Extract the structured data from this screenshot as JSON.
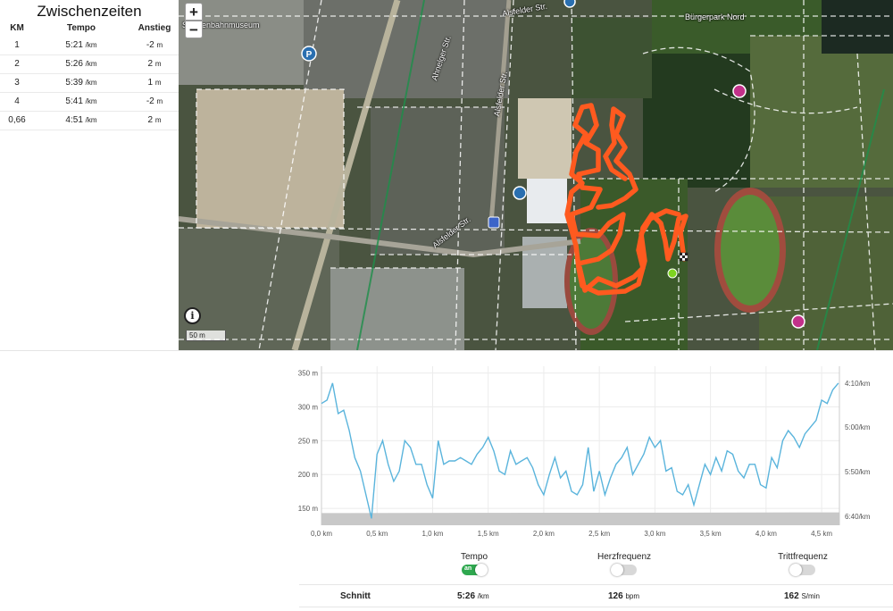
{
  "splits": {
    "title": "Zwischenzeiten",
    "headers": {
      "km": "KM",
      "pace": "Tempo",
      "climb": "Anstieg"
    },
    "rows": [
      {
        "km": "1",
        "pace": "5:21",
        "pace_unit": "/km",
        "climb": "-2",
        "climb_unit": "m"
      },
      {
        "km": "2",
        "pace": "5:26",
        "pace_unit": "/km",
        "climb": "2",
        "climb_unit": "m"
      },
      {
        "km": "3",
        "pace": "5:39",
        "pace_unit": "/km",
        "climb": "1",
        "climb_unit": "m"
      },
      {
        "km": "4",
        "pace": "5:41",
        "pace_unit": "/km",
        "climb": "-2",
        "climb_unit": "m"
      },
      {
        "km": "0,66",
        "pace": "4:51",
        "pace_unit": "/km",
        "climb": "2",
        "climb_unit": "m"
      }
    ]
  },
  "map": {
    "zoom_in": "+",
    "zoom_out": "−",
    "info": "i",
    "scale": "50 m",
    "labels": {
      "museum": "Straßenbahnmuseum",
      "burgerpark": "Bürgerpark Nord",
      "street1": "Ahnelger Str.",
      "street2": "Alsfelder Str.",
      "street3": "Alsfelder Str.",
      "street4": "Alsfelder Str."
    },
    "route_color": "#ff5a1f",
    "start_color": "#7ed321"
  },
  "chart_data": {
    "type": "line",
    "series": [
      {
        "values_x_km": [
          0.0,
          0.05,
          0.1,
          0.15,
          0.2,
          0.25,
          0.3,
          0.35,
          0.4,
          0.45,
          0.5,
          0.55,
          0.6,
          0.65,
          0.7,
          0.75,
          0.8,
          0.85,
          0.9,
          0.95,
          1.0,
          1.05,
          1.1,
          1.15,
          1.2,
          1.25,
          1.3,
          1.35,
          1.4,
          1.45,
          1.5,
          1.55,
          1.6,
          1.65,
          1.7,
          1.75,
          1.8,
          1.85,
          1.9,
          1.95,
          2.0,
          2.05,
          2.1,
          2.15,
          2.2,
          2.25,
          2.3,
          2.35,
          2.4,
          2.45,
          2.5,
          2.55,
          2.6,
          2.65,
          2.7,
          2.75,
          2.8,
          2.85,
          2.9,
          2.95,
          3.0,
          3.05,
          3.1,
          3.15,
          3.2,
          3.25,
          3.3,
          3.35,
          3.4,
          3.45,
          3.5,
          3.55,
          3.6,
          3.65,
          3.7,
          3.75,
          3.8,
          3.85,
          3.9,
          3.95,
          4.0,
          4.05,
          4.1,
          4.15,
          4.2,
          4.25,
          4.3,
          4.35,
          4.4,
          4.45,
          4.5,
          4.55,
          4.6,
          4.65
        ],
        "values_y_m": [
          305,
          310,
          335,
          290,
          295,
          265,
          225,
          205,
          170,
          135,
          230,
          250,
          215,
          190,
          205,
          250,
          240,
          215,
          215,
          185,
          165,
          250,
          215,
          220,
          220,
          225,
          220,
          215,
          230,
          240,
          255,
          235,
          205,
          200,
          235,
          215,
          220,
          225,
          210,
          185,
          170,
          200,
          225,
          195,
          205,
          175,
          170,
          185,
          240,
          175,
          205,
          170,
          195,
          215,
          225,
          240,
          200,
          215,
          230,
          255,
          240,
          250,
          205,
          210,
          175,
          170,
          185,
          155,
          185,
          215,
          200,
          225,
          205,
          235,
          230,
          205,
          195,
          215,
          215,
          185,
          180,
          225,
          210,
          250,
          265,
          255,
          240,
          260,
          270,
          280,
          310,
          305,
          325,
          335
        ]
      }
    ],
    "x_ticks": [
      "0,0 km",
      "0,5 km",
      "1,0 km",
      "1,5 km",
      "2,0 km",
      "2,5 km",
      "3,0 km",
      "3,5 km",
      "4,0 km",
      "4,5 km"
    ],
    "y_ticks_left": [
      "150 m",
      "200 m",
      "250 m",
      "300 m",
      "350 m"
    ],
    "y_ticks_right": [
      "4:10/km",
      "5:00/km",
      "5:50/km",
      "6:40/km"
    ],
    "x_range": [
      0,
      4.66
    ],
    "y_range": [
      125,
      360
    ],
    "grid": true,
    "line_color": "#5ab4dc",
    "elevation_fill": "#c8c8c8"
  },
  "toggles": [
    {
      "label": "Tempo",
      "state": "on",
      "state_label": "an"
    },
    {
      "label": "Herzfrequenz",
      "state": "off",
      "state_label": ""
    },
    {
      "label": "Trittfrequenz",
      "state": "off",
      "state_label": ""
    }
  ],
  "summary": {
    "label": "Schnitt",
    "pace": "5:26",
    "pace_unit": "/km",
    "hr": "126",
    "hr_unit": "bpm",
    "cadence": "162",
    "cadence_unit": "S/min"
  }
}
